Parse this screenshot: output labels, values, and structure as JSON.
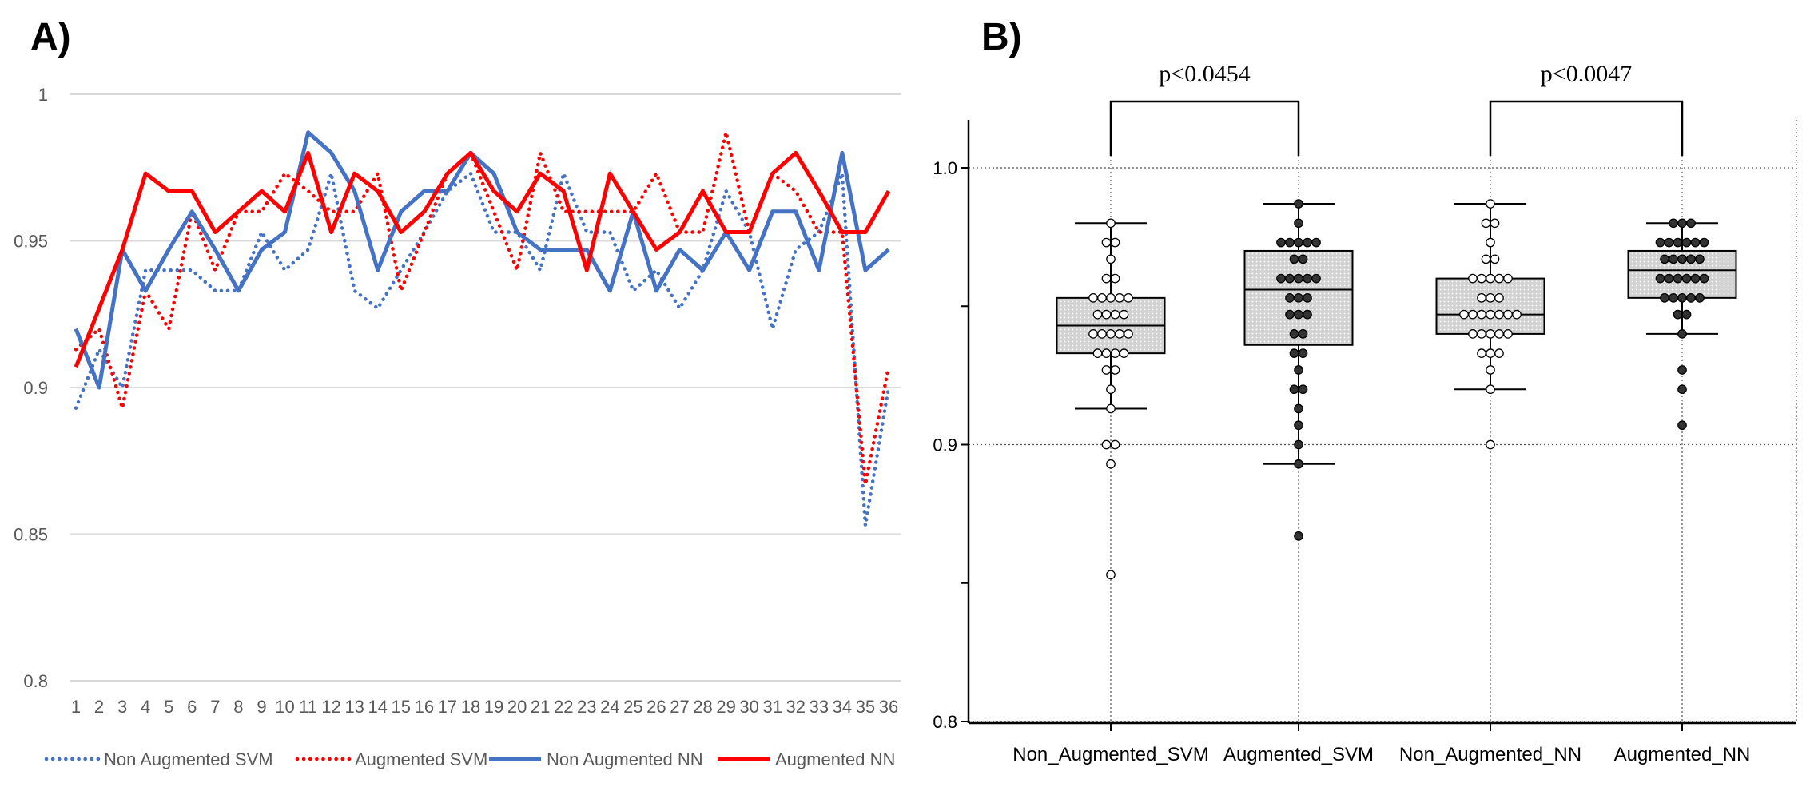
{
  "figure": {
    "label_a": "A)",
    "label_b": "B)"
  },
  "chart_data": [
    {
      "panel": "A)",
      "type": "line",
      "x": [
        1,
        2,
        3,
        4,
        5,
        6,
        7,
        8,
        9,
        10,
        11,
        12,
        13,
        14,
        15,
        16,
        17,
        18,
        19,
        20,
        21,
        22,
        23,
        24,
        25,
        26,
        27,
        28,
        29,
        30,
        31,
        32,
        33,
        34,
        35,
        36
      ],
      "ylim": [
        0.8,
        1.0
      ],
      "yticks": [
        "0.8",
        "0.85",
        "0.9",
        "0.95",
        "1"
      ],
      "xticks": [
        "1",
        "2",
        "3",
        "4",
        "5",
        "6",
        "7",
        "8",
        "9",
        "10",
        "11",
        "12",
        "13",
        "14",
        "15",
        "16",
        "17",
        "18",
        "19",
        "20",
        "21",
        "22",
        "23",
        "24",
        "25",
        "26",
        "27",
        "28",
        "29",
        "30",
        "31",
        "32",
        "33",
        "34",
        "35",
        "36"
      ],
      "grid": "horizontal",
      "legend_position": "bottom",
      "series": [
        {
          "name": "Non Augmented SVM",
          "color": "#4472C4",
          "style": "dotted",
          "values": [
            0.893,
            0.913,
            0.9,
            0.94,
            0.94,
            0.94,
            0.933,
            0.933,
            0.953,
            0.94,
            0.947,
            0.973,
            0.933,
            0.927,
            0.94,
            0.953,
            0.967,
            0.973,
            0.953,
            0.953,
            0.94,
            0.973,
            0.953,
            0.953,
            0.933,
            0.94,
            0.927,
            0.94,
            0.967,
            0.953,
            0.92,
            0.947,
            0.953,
            0.973,
            0.853,
            0.9
          ]
        },
        {
          "name": "Augmented SVM",
          "color": "#FF0000",
          "style": "dotted",
          "values": [
            0.913,
            0.92,
            0.893,
            0.933,
            0.92,
            0.96,
            0.94,
            0.96,
            0.96,
            0.973,
            0.967,
            0.96,
            0.96,
            0.973,
            0.933,
            0.953,
            0.973,
            0.98,
            0.96,
            0.94,
            0.98,
            0.96,
            0.96,
            0.96,
            0.96,
            0.973,
            0.953,
            0.953,
            0.987,
            0.953,
            0.973,
            0.967,
            0.953,
            0.953,
            0.867,
            0.907
          ]
        },
        {
          "name": "Non Augmented NN",
          "color": "#4472C4",
          "style": "solid",
          "values": [
            0.92,
            0.9,
            0.947,
            0.933,
            0.947,
            0.96,
            0.947,
            0.933,
            0.947,
            0.953,
            0.987,
            0.98,
            0.967,
            0.94,
            0.96,
            0.967,
            0.967,
            0.98,
            0.973,
            0.953,
            0.947,
            0.947,
            0.947,
            0.933,
            0.96,
            0.933,
            0.947,
            0.94,
            0.953,
            0.94,
            0.96,
            0.96,
            0.94,
            0.98,
            0.94,
            0.947
          ]
        },
        {
          "name": "Augmented NN",
          "color": "#FF0000",
          "style": "solid",
          "values": [
            0.907,
            0.927,
            0.947,
            0.973,
            0.967,
            0.967,
            0.953,
            0.96,
            0.967,
            0.96,
            0.98,
            0.953,
            0.973,
            0.967,
            0.953,
            0.96,
            0.973,
            0.98,
            0.967,
            0.96,
            0.973,
            0.967,
            0.94,
            0.973,
            0.96,
            0.947,
            0.953,
            0.967,
            0.953,
            0.953,
            0.973,
            0.98,
            0.967,
            0.953,
            0.953,
            0.967
          ]
        }
      ]
    },
    {
      "panel": "B)",
      "type": "box",
      "categories": [
        "Non_Augmented_SVM",
        "Augmented_SVM",
        "Non_Augmented_NN",
        "Augmented_NN"
      ],
      "ylim": [
        0.8,
        1.0
      ],
      "yticks": [
        "0.8",
        "0.9",
        "1.0"
      ],
      "grid": "dotted",
      "boxes": [
        {
          "name": "Non_Augmented_SVM",
          "marker": "hollow",
          "whisker_low": 0.913,
          "q1": 0.933,
          "median": 0.943,
          "q3": 0.953,
          "whisker_high": 0.98,
          "points": [
            0.98,
            0.973,
            0.973,
            0.967,
            0.96,
            0.96,
            0.953,
            0.953,
            0.953,
            0.953,
            0.953,
            0.947,
            0.947,
            0.947,
            0.947,
            0.94,
            0.94,
            0.94,
            0.94,
            0.94,
            0.933,
            0.933,
            0.933,
            0.933,
            0.927,
            0.927,
            0.92,
            0.913,
            0.9,
            0.9,
            0.893,
            0.853
          ]
        },
        {
          "name": "Augmented_SVM",
          "marker": "filled",
          "whisker_low": 0.893,
          "q1": 0.936,
          "median": 0.956,
          "q3": 0.97,
          "whisker_high": 0.987,
          "points": [
            0.987,
            0.98,
            0.973,
            0.973,
            0.973,
            0.973,
            0.973,
            0.967,
            0.967,
            0.96,
            0.96,
            0.96,
            0.96,
            0.96,
            0.953,
            0.953,
            0.953,
            0.947,
            0.947,
            0.947,
            0.94,
            0.94,
            0.933,
            0.933,
            0.927,
            0.92,
            0.92,
            0.913,
            0.907,
            0.9,
            0.893,
            0.867
          ]
        },
        {
          "name": "Non_Augmented_NN",
          "marker": "hollow",
          "whisker_low": 0.92,
          "q1": 0.94,
          "median": 0.947,
          "q3": 0.96,
          "whisker_high": 0.987,
          "points": [
            0.987,
            0.98,
            0.98,
            0.973,
            0.967,
            0.967,
            0.96,
            0.96,
            0.96,
            0.96,
            0.96,
            0.953,
            0.953,
            0.953,
            0.947,
            0.947,
            0.947,
            0.947,
            0.947,
            0.947,
            0.947,
            0.94,
            0.94,
            0.94,
            0.94,
            0.94,
            0.933,
            0.933,
            0.933,
            0.927,
            0.92,
            0.9
          ]
        },
        {
          "name": "Augmented_NN",
          "marker": "filled",
          "whisker_low": 0.94,
          "q1": 0.953,
          "median": 0.963,
          "q3": 0.97,
          "whisker_high": 0.98,
          "points": [
            0.98,
            0.98,
            0.98,
            0.973,
            0.973,
            0.973,
            0.973,
            0.973,
            0.973,
            0.967,
            0.967,
            0.967,
            0.967,
            0.967,
            0.96,
            0.96,
            0.96,
            0.96,
            0.96,
            0.96,
            0.953,
            0.953,
            0.953,
            0.953,
            0.953,
            0.947,
            0.947,
            0.94,
            0.927,
            0.92,
            0.907
          ]
        }
      ],
      "annotations": [
        {
          "text": "p<0.0454",
          "from": "Non_Augmented_SVM",
          "to": "Augmented_SVM"
        },
        {
          "text": "p<0.0047",
          "from": "Non_Augmented_NN",
          "to": "Augmented_NN"
        }
      ]
    }
  ]
}
